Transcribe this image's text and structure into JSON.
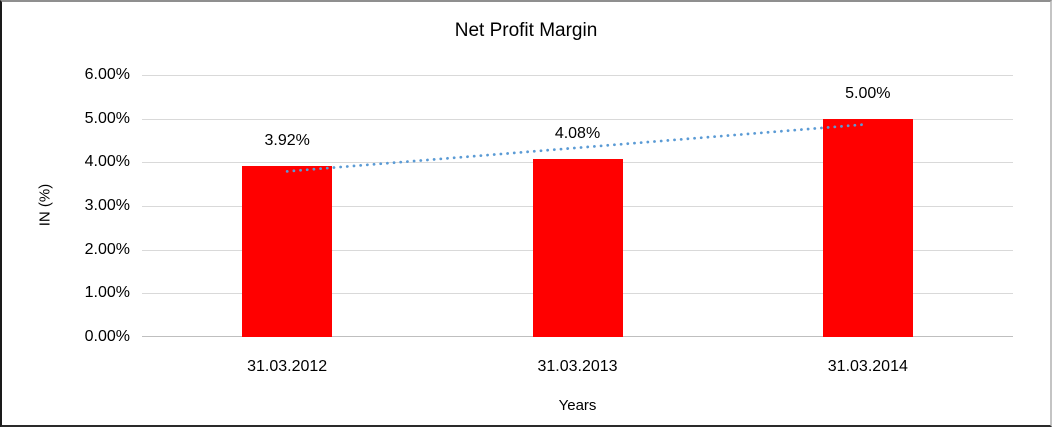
{
  "chart_data": {
    "type": "bar",
    "title": "Net Profit Margin",
    "xlabel": "Years",
    "ylabel": "IN (%)",
    "categories": [
      "31.03.2012",
      "31.03.2013",
      "31.03.2014"
    ],
    "series": [
      {
        "name": "Net Profit Margin",
        "values": [
          3.92,
          4.08,
          5.0
        ],
        "color": "#FF0000"
      }
    ],
    "data_labels": [
      "3.92%",
      "4.08%",
      "5.00%"
    ],
    "y_ticks": [
      "0.00%",
      "1.00%",
      "2.00%",
      "3.00%",
      "4.00%",
      "5.00%",
      "6.00%"
    ],
    "ylim": [
      0,
      6
    ],
    "grid": true,
    "legend": "none",
    "trendline": {
      "type": "linear",
      "style": "dotted",
      "color": "#5B9BD5"
    },
    "colors": {
      "bar": "#FF0000",
      "gridline": "#D9D9D9",
      "axis_line": "#BFBFBF",
      "text": "#000000",
      "trendline": "#5B9BD5"
    }
  }
}
